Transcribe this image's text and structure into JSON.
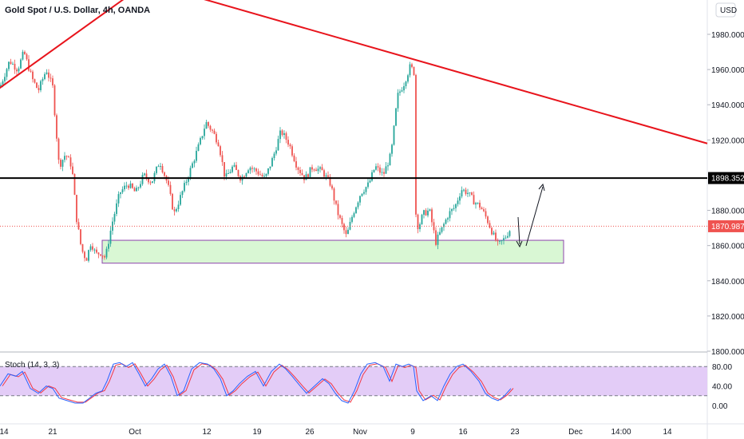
{
  "header": {
    "title": "Gold Spot / U.S. Dollar, 4h, OANDA",
    "currency": "USD"
  },
  "indicator": {
    "label": "Stoch (14, 3, 3)",
    "ticks": [
      "80.00",
      "40.00",
      "0.00"
    ]
  },
  "colors": {
    "up": "#26a69a",
    "down": "#ef5350",
    "trendline": "#e8141c",
    "level": "#000000",
    "current_price": "#ef5350",
    "zone_fill": "#d9f7d4",
    "zone_border": "#8e44ad",
    "stoch_band": "#e3ccf7",
    "stoch_k": "#2962ff",
    "stoch_d": "#f23645"
  },
  "chart_data": {
    "type": "candlestick",
    "price_axis_ticks": [
      "1980.000",
      "1960.000",
      "1940.000",
      "1920.000",
      "1880.000",
      "1860.000",
      "1840.000",
      "1820.000",
      "1800.000"
    ],
    "time_axis_ticks": [
      "14",
      "21",
      "Oct",
      "12",
      "19",
      "26",
      "Nov",
      "9",
      "16",
      "23",
      "Dec",
      "14:00",
      "14"
    ],
    "ylim": [
      1800,
      1995
    ],
    "level_price": "1898.352",
    "level_value": 1898.352,
    "current_price": "1870.987",
    "current_value": 1870.987,
    "support_zone": {
      "low": 1850,
      "high": 1863
    },
    "path": [
      [
        0,
        1950
      ],
      [
        12,
        1965
      ],
      [
        22,
        1960
      ],
      [
        30,
        1970
      ],
      [
        40,
        1955
      ],
      [
        48,
        1948
      ],
      [
        58,
        1960
      ],
      [
        66,
        1950
      ],
      [
        74,
        1905
      ],
      [
        82,
        1912
      ],
      [
        90,
        1905
      ],
      [
        96,
        1875
      ],
      [
        102,
        1858
      ],
      [
        108,
        1852
      ],
      [
        114,
        1862
      ],
      [
        120,
        1855
      ],
      [
        126,
        1856
      ],
      [
        132,
        1853
      ],
      [
        140,
        1872
      ],
      [
        150,
        1890
      ],
      [
        160,
        1895
      ],
      [
        170,
        1890
      ],
      [
        180,
        1900
      ],
      [
        190,
        1896
      ],
      [
        200,
        1908
      ],
      [
        210,
        1895
      ],
      [
        218,
        1878
      ],
      [
        228,
        1890
      ],
      [
        240,
        1905
      ],
      [
        250,
        1918
      ],
      [
        258,
        1930
      ],
      [
        266,
        1925
      ],
      [
        274,
        1918
      ],
      [
        282,
        1898
      ],
      [
        292,
        1905
      ],
      [
        302,
        1898
      ],
      [
        312,
        1905
      ],
      [
        322,
        1902
      ],
      [
        332,
        1898
      ],
      [
        342,
        1910
      ],
      [
        352,
        1925
      ],
      [
        362,
        1918
      ],
      [
        372,
        1905
      ],
      [
        382,
        1898
      ],
      [
        392,
        1905
      ],
      [
        404,
        1902
      ],
      [
        414,
        1895
      ],
      [
        422,
        1880
      ],
      [
        428,
        1872
      ],
      [
        434,
        1865
      ],
      [
        442,
        1878
      ],
      [
        452,
        1890
      ],
      [
        462,
        1895
      ],
      [
        470,
        1905
      ],
      [
        480,
        1900
      ],
      [
        490,
        1912
      ],
      [
        498,
        1945
      ],
      [
        506,
        1952
      ],
      [
        514,
        1962
      ],
      [
        519,
        1958
      ],
      [
        521,
        1878
      ],
      [
        524,
        1870
      ],
      [
        530,
        1878
      ],
      [
        538,
        1880
      ],
      [
        546,
        1862
      ],
      [
        554,
        1870
      ],
      [
        562,
        1878
      ],
      [
        570,
        1882
      ],
      [
        578,
        1892
      ],
      [
        586,
        1890
      ],
      [
        594,
        1885
      ],
      [
        602,
        1882
      ],
      [
        610,
        1875
      ],
      [
        618,
        1866
      ],
      [
        624,
        1860
      ],
      [
        632,
        1864
      ],
      [
        640,
        1870
      ]
    ],
    "stoch_k": [
      [
        0,
        40
      ],
      [
        10,
        65
      ],
      [
        20,
        60
      ],
      [
        28,
        70
      ],
      [
        38,
        35
      ],
      [
        48,
        25
      ],
      [
        58,
        40
      ],
      [
        66,
        35
      ],
      [
        74,
        15
      ],
      [
        84,
        10
      ],
      [
        94,
        5
      ],
      [
        104,
        5
      ],
      [
        112,
        15
      ],
      [
        120,
        25
      ],
      [
        128,
        30
      ],
      [
        134,
        50
      ],
      [
        142,
        85
      ],
      [
        150,
        88
      ],
      [
        158,
        80
      ],
      [
        166,
        88
      ],
      [
        174,
        65
      ],
      [
        182,
        40
      ],
      [
        190,
        55
      ],
      [
        198,
        75
      ],
      [
        206,
        85
      ],
      [
        214,
        60
      ],
      [
        222,
        20
      ],
      [
        230,
        30
      ],
      [
        240,
        75
      ],
      [
        250,
        88
      ],
      [
        260,
        85
      ],
      [
        268,
        75
      ],
      [
        276,
        55
      ],
      [
        284,
        20
      ],
      [
        292,
        30
      ],
      [
        300,
        45
      ],
      [
        310,
        60
      ],
      [
        320,
        70
      ],
      [
        330,
        40
      ],
      [
        340,
        70
      ],
      [
        350,
        85
      ],
      [
        358,
        75
      ],
      [
        366,
        60
      ],
      [
        376,
        40
      ],
      [
        384,
        25
      ],
      [
        394,
        40
      ],
      [
        404,
        55
      ],
      [
        412,
        45
      ],
      [
        420,
        25
      ],
      [
        428,
        10
      ],
      [
        436,
        5
      ],
      [
        444,
        30
      ],
      [
        452,
        65
      ],
      [
        460,
        85
      ],
      [
        470,
        88
      ],
      [
        480,
        80
      ],
      [
        488,
        50
      ],
      [
        496,
        85
      ],
      [
        504,
        80
      ],
      [
        512,
        85
      ],
      [
        518,
        80
      ],
      [
        522,
        30
      ],
      [
        530,
        10
      ],
      [
        540,
        20
      ],
      [
        548,
        10
      ],
      [
        556,
        40
      ],
      [
        564,
        65
      ],
      [
        572,
        80
      ],
      [
        580,
        85
      ],
      [
        590,
        70
      ],
      [
        600,
        50
      ],
      [
        608,
        25
      ],
      [
        616,
        15
      ],
      [
        624,
        10
      ],
      [
        632,
        20
      ],
      [
        640,
        35
      ]
    ],
    "trendlines": [
      {
        "from": [
          -5,
          1948
        ],
        "to": [
          155,
          2000
        ]
      },
      {
        "from": [
          255,
          2000
        ],
        "to": [
          886,
          1918
        ]
      }
    ]
  }
}
